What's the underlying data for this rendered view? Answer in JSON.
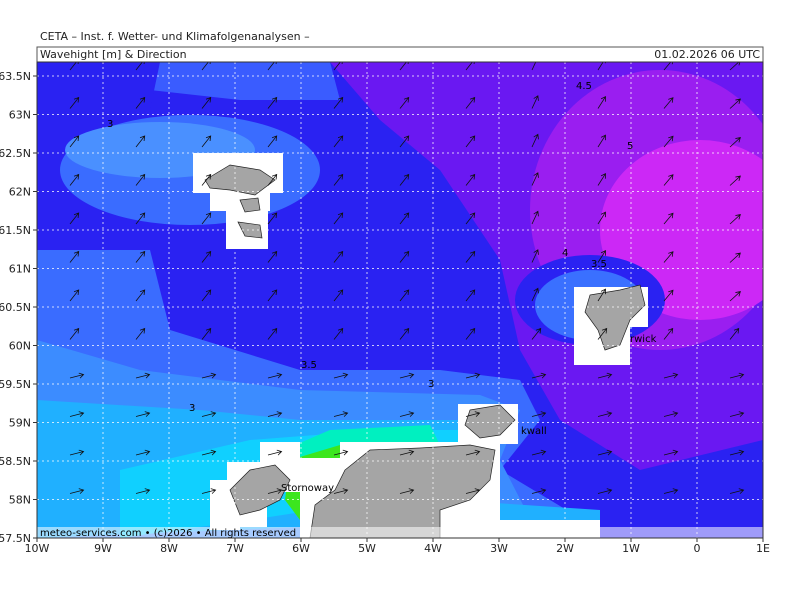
{
  "header": "CETA – Inst. f. Wetter- und Klimafolgenanalysen –",
  "title": "Wavehight [m] & Direction",
  "date": "01.02.2026 06 UTC",
  "lat_labels": [
    "63.5N",
    "63N",
    "62.5N",
    "62N",
    "61.5N",
    "61N",
    "60.5N",
    "60N",
    "59.5N",
    "59N",
    "58.5N",
    "58N",
    "57.5N"
  ],
  "lon_labels": [
    "10W",
    "9W",
    "8W",
    "7W",
    "6W",
    "5W",
    "4W",
    "3W",
    "2W",
    "1W",
    "0",
    "1E"
  ],
  "contour_labels": [
    "4.5",
    "5",
    "4",
    "3.5",
    "3",
    "3.5",
    "3",
    "3"
  ],
  "places": [
    "Stornoway",
    "kwall",
    "rwick"
  ],
  "copyright": "meteo-services.com • (c)2026 • All rights reserved"
}
